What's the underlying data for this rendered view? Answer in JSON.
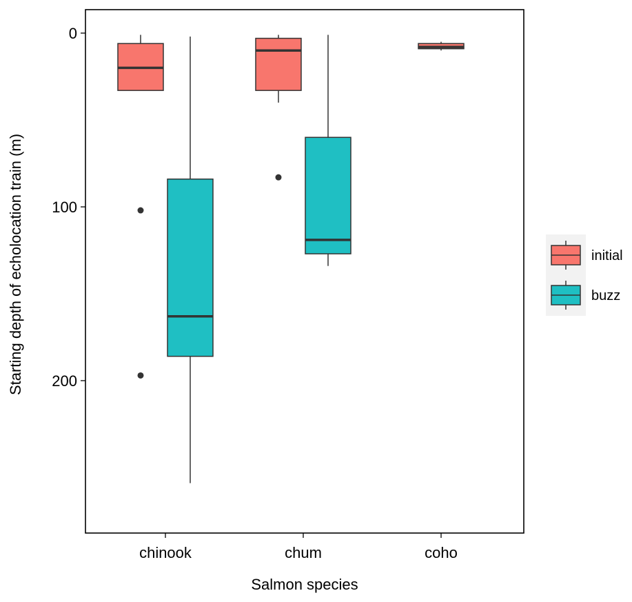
{
  "chart_data": {
    "type": "boxplot",
    "title": "",
    "xlabel": "Salmon species",
    "ylabel": "Starting depth of echolocation train (m)",
    "y_axis_reversed": true,
    "ylim": [
      0,
      290
    ],
    "yticks": [
      0,
      100,
      200
    ],
    "categories": [
      "chinook",
      "chum",
      "coho"
    ],
    "grid": false,
    "legend_position": "right",
    "series": [
      {
        "name": "initial",
        "color": "#F8766D",
        "boxes": [
          {
            "category": "chinook",
            "whisker_low": 1,
            "q1": 6,
            "median": 20,
            "q3": 33,
            "whisker_high": 33,
            "outliers": [
              102,
              197
            ]
          },
          {
            "category": "chum",
            "whisker_low": 1,
            "q1": 3,
            "median": 10,
            "q3": 33,
            "whisker_high": 40,
            "outliers": [
              83
            ]
          },
          {
            "category": "coho",
            "whisker_low": 5,
            "q1": 6,
            "median": 8,
            "q3": 9,
            "whisker_high": 10,
            "outliers": []
          }
        ]
      },
      {
        "name": "buzz",
        "color": "#1FBFC3",
        "boxes": [
          {
            "category": "chinook",
            "whisker_low": 2,
            "q1": 84,
            "median": 163,
            "q3": 186,
            "whisker_high": 259,
            "outliers": []
          },
          {
            "category": "chum",
            "whisker_low": 1,
            "q1": 60,
            "median": 119,
            "q3": 127,
            "whisker_high": 134,
            "outliers": []
          }
        ]
      }
    ]
  }
}
